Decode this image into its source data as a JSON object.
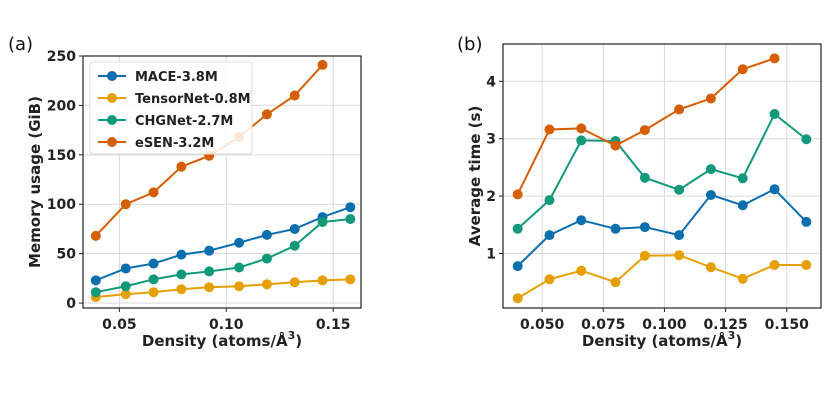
{
  "colors": {
    "MACE-3.8M": "#0b6fad",
    "TensorNet-0.8M": "#e69f00",
    "CHGNet-2.7M": "#12997a",
    "eSEN-3.2M": "#d55e00"
  },
  "chart_data": [
    {
      "type": "line",
      "panel_label": "(a)",
      "xlabel": "Density (atoms/Å",
      "xlabel_sup": "3",
      "xlabel_close": ")",
      "ylabel": "Memory usage (GiB)",
      "xlim": [
        0.033,
        0.163
      ],
      "ylim": [
        -5,
        250
      ],
      "xticks": [
        0.05,
        0.1,
        0.15
      ],
      "xtick_labels": [
        "0.05",
        "0.10",
        "0.15"
      ],
      "yticks": [
        0,
        50,
        100,
        150,
        200,
        250
      ],
      "ytick_labels": [
        "0",
        "50",
        "100",
        "150",
        "200",
        "250"
      ],
      "grid": true,
      "legend": "top-left",
      "series": [
        {
          "name": "MACE-3.8M",
          "x": [
            0.039,
            0.053,
            0.066,
            0.079,
            0.092,
            0.106,
            0.119,
            0.132,
            0.145,
            0.158
          ],
          "values": [
            23,
            35,
            40,
            49,
            53,
            61,
            69,
            75,
            87,
            97
          ]
        },
        {
          "name": "TensorNet-0.8M",
          "x": [
            0.039,
            0.053,
            0.066,
            0.079,
            0.092,
            0.106,
            0.119,
            0.132,
            0.145,
            0.158
          ],
          "values": [
            6,
            9,
            11,
            14,
            16,
            17,
            19,
            21,
            23,
            24
          ]
        },
        {
          "name": "CHGNet-2.7M",
          "x": [
            0.039,
            0.053,
            0.066,
            0.079,
            0.092,
            0.106,
            0.119,
            0.132,
            0.145,
            0.158
          ],
          "values": [
            11,
            17,
            24,
            29,
            32,
            36,
            45,
            58,
            82,
            85
          ]
        },
        {
          "name": "eSEN-3.2M",
          "x": [
            0.039,
            0.053,
            0.066,
            0.079,
            0.092,
            0.106,
            0.119,
            0.132,
            0.145
          ],
          "values": [
            68,
            100,
            112,
            138,
            149,
            168,
            191,
            210,
            241
          ]
        }
      ]
    },
    {
      "type": "line",
      "panel_label": "(b)",
      "xlabel": "Density (atoms/Å",
      "xlabel_sup": "3",
      "xlabel_close": ")",
      "ylabel": "Average time (s)",
      "xlim": [
        0.034,
        0.164
      ],
      "ylim": [
        0.05,
        4.65
      ],
      "xticks": [
        0.05,
        0.075,
        0.1,
        0.125,
        0.15
      ],
      "xtick_labels": [
        "0.050",
        "0.075",
        "0.100",
        "0.125",
        "0.150"
      ],
      "yticks": [
        1,
        2,
        3,
        4
      ],
      "ytick_labels": [
        "1",
        "2",
        "3",
        "4"
      ],
      "grid": true,
      "legend": "none",
      "series": [
        {
          "name": "MACE-3.8M",
          "x": [
            0.04,
            0.053,
            0.066,
            0.08,
            0.092,
            0.106,
            0.119,
            0.132,
            0.145,
            0.158
          ],
          "values": [
            0.78,
            1.32,
            1.58,
            1.43,
            1.46,
            1.32,
            2.02,
            1.84,
            2.12,
            1.55
          ]
        },
        {
          "name": "TensorNet-0.8M",
          "x": [
            0.04,
            0.053,
            0.066,
            0.08,
            0.092,
            0.106,
            0.119,
            0.132,
            0.145,
            0.158
          ],
          "values": [
            0.22,
            0.55,
            0.7,
            0.5,
            0.96,
            0.97,
            0.76,
            0.56,
            0.8,
            0.8
          ]
        },
        {
          "name": "CHGNet-2.7M",
          "x": [
            0.04,
            0.053,
            0.066,
            0.08,
            0.092,
            0.106,
            0.119,
            0.132,
            0.145,
            0.158
          ],
          "values": [
            1.43,
            1.93,
            2.97,
            2.96,
            2.32,
            2.11,
            2.47,
            2.31,
            3.43,
            2.99
          ]
        },
        {
          "name": "eSEN-3.2M",
          "x": [
            0.04,
            0.053,
            0.066,
            0.08,
            0.092,
            0.106,
            0.119,
            0.132,
            0.145
          ],
          "values": [
            2.03,
            3.16,
            3.18,
            2.88,
            3.15,
            3.51,
            3.7,
            4.21,
            4.4
          ]
        }
      ]
    }
  ]
}
